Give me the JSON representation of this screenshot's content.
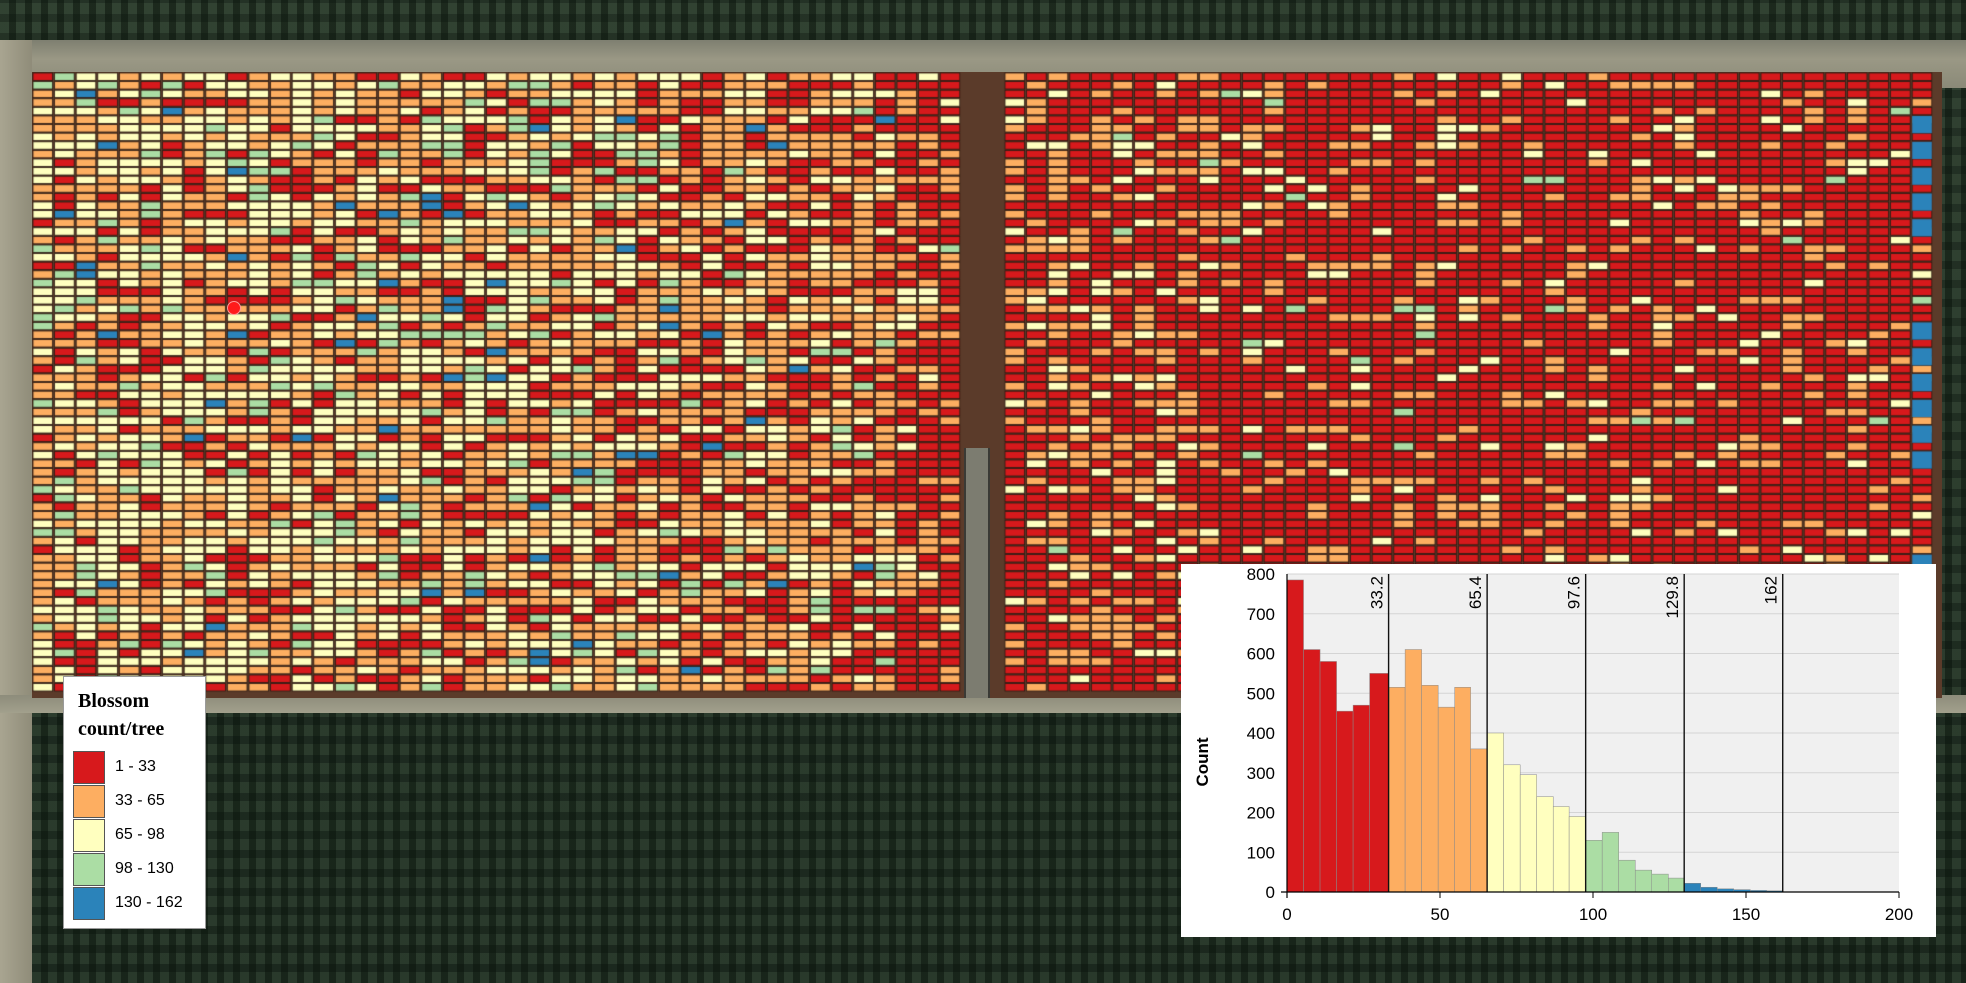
{
  "legend": {
    "title_line1": "Blossom",
    "title_line2": "count/tree",
    "classes": [
      {
        "label": "1 - 33",
        "color": "#d7191c"
      },
      {
        "label": "33 - 65",
        "color": "#fdae61"
      },
      {
        "label": "65 - 98",
        "color": "#ffffbf"
      },
      {
        "label": "98 - 130",
        "color": "#abdda4"
      },
      {
        "label": "130 - 162",
        "color": "#2b83ba"
      }
    ]
  },
  "chart_data": {
    "type": "bar",
    "ylabel": "Count",
    "xlabel": "",
    "xlim": [
      0,
      200
    ],
    "ylim": [
      0,
      800
    ],
    "x_ticks": [
      "0",
      "50",
      "100",
      "150",
      "200"
    ],
    "y_ticks": [
      "0",
      "100",
      "200",
      "300",
      "400",
      "500",
      "600",
      "700",
      "800"
    ],
    "break_values": [
      "33.2",
      "65.4",
      "97.6",
      "129.8",
      "162"
    ],
    "grid": true,
    "bins": [
      {
        "x0": 0,
        "x1": 5.4,
        "count": 785,
        "color": "#d7191c"
      },
      {
        "x0": 5.4,
        "x1": 10.8,
        "count": 610,
        "color": "#d7191c"
      },
      {
        "x0": 10.8,
        "x1": 16.2,
        "count": 580,
        "color": "#d7191c"
      },
      {
        "x0": 16.2,
        "x1": 21.6,
        "count": 455,
        "color": "#d7191c"
      },
      {
        "x0": 21.6,
        "x1": 27.0,
        "count": 470,
        "color": "#d7191c"
      },
      {
        "x0": 27.0,
        "x1": 33.2,
        "count": 550,
        "color": "#d7191c"
      },
      {
        "x0": 33.2,
        "x1": 38.6,
        "count": 515,
        "color": "#fdae61"
      },
      {
        "x0": 38.6,
        "x1": 44.0,
        "count": 610,
        "color": "#fdae61"
      },
      {
        "x0": 44.0,
        "x1": 49.4,
        "count": 520,
        "color": "#fdae61"
      },
      {
        "x0": 49.4,
        "x1": 54.8,
        "count": 465,
        "color": "#fdae61"
      },
      {
        "x0": 54.8,
        "x1": 60.0,
        "count": 515,
        "color": "#fdae61"
      },
      {
        "x0": 60.0,
        "x1": 65.4,
        "count": 360,
        "color": "#fdae61"
      },
      {
        "x0": 65.4,
        "x1": 70.8,
        "count": 400,
        "color": "#ffffbf"
      },
      {
        "x0": 70.8,
        "x1": 76.2,
        "count": 320,
        "color": "#ffffbf"
      },
      {
        "x0": 76.2,
        "x1": 81.6,
        "count": 295,
        "color": "#ffffbf"
      },
      {
        "x0": 81.6,
        "x1": 87.0,
        "count": 240,
        "color": "#ffffbf"
      },
      {
        "x0": 87.0,
        "x1": 92.2,
        "count": 215,
        "color": "#ffffbf"
      },
      {
        "x0": 92.2,
        "x1": 97.6,
        "count": 190,
        "color": "#ffffbf"
      },
      {
        "x0": 97.6,
        "x1": 103.0,
        "count": 130,
        "color": "#abdda4"
      },
      {
        "x0": 103.0,
        "x1": 108.4,
        "count": 150,
        "color": "#abdda4"
      },
      {
        "x0": 108.4,
        "x1": 113.8,
        "count": 80,
        "color": "#abdda4"
      },
      {
        "x0": 113.8,
        "x1": 119.2,
        "count": 55,
        "color": "#abdda4"
      },
      {
        "x0": 119.2,
        "x1": 124.6,
        "count": 45,
        "color": "#abdda4"
      },
      {
        "x0": 124.6,
        "x1": 129.8,
        "count": 35,
        "color": "#abdda4"
      },
      {
        "x0": 129.8,
        "x1": 135.2,
        "count": 22,
        "color": "#2b83ba"
      },
      {
        "x0": 135.2,
        "x1": 140.6,
        "count": 12,
        "color": "#2b83ba"
      },
      {
        "x0": 140.6,
        "x1": 146.0,
        "count": 8,
        "color": "#2b83ba"
      },
      {
        "x0": 146.0,
        "x1": 151.4,
        "count": 6,
        "color": "#2b83ba"
      },
      {
        "x0": 151.4,
        "x1": 156.8,
        "count": 4,
        "color": "#2b83ba"
      },
      {
        "x0": 156.8,
        "x1": 162.0,
        "count": 3,
        "color": "#2b83ba"
      }
    ]
  }
}
